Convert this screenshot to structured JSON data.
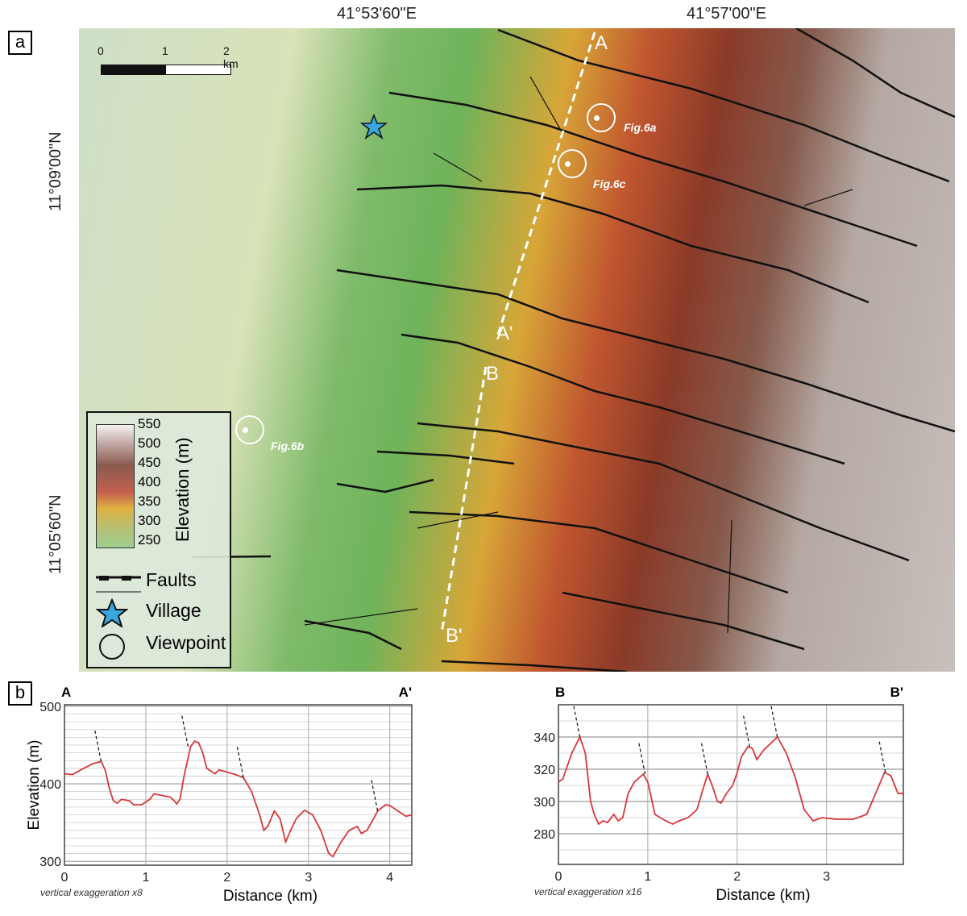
{
  "panel_a": {
    "label": "a",
    "top_coords": [
      "41°53'60\"E",
      "41°57'00\"E"
    ],
    "left_coords": [
      "11°09'00\"N",
      "11°05'60\"N"
    ],
    "scale_bar": {
      "labels": [
        "0",
        "1",
        "2 km"
      ]
    },
    "profile_labels": {
      "a": "A",
      "a_end": "A'",
      "b": "B",
      "b_end": "B'"
    },
    "viewpoints": [
      "Fig.6a",
      "Fig.6c",
      "Fig.6b"
    ],
    "legend": {
      "elevation_title": "Elevation (m)",
      "elevation_ticks": [
        "550",
        "500",
        "450",
        "400",
        "350",
        "300",
        "250"
      ],
      "faults": "Faults",
      "village": "Village",
      "viewpoint": "Viewpoint"
    },
    "colors": {
      "village": "#3aa6e0",
      "fault": "#111111"
    }
  },
  "panel_b": {
    "label": "b"
  },
  "chart_data": [
    {
      "type": "line",
      "start_label": "A",
      "end_label": "A'",
      "xlabel": "Distance (km)",
      "ylabel": "Elevation (m)",
      "note": "vertical exaggeration x8",
      "xlim": [
        0,
        4.27
      ],
      "ylim": [
        295,
        502
      ],
      "xticks": [
        "0",
        "1",
        "2",
        "3",
        "4"
      ],
      "yticks": [
        "300",
        "400",
        "500"
      ],
      "grid": true,
      "line_color": "#d8383a",
      "x": [
        0,
        0.1,
        0.2,
        0.35,
        0.45,
        0.5,
        0.55,
        0.6,
        0.65,
        0.7,
        0.8,
        0.85,
        0.95,
        1.05,
        1.1,
        1.2,
        1.3,
        1.35,
        1.38,
        1.42,
        1.47,
        1.55,
        1.6,
        1.65,
        1.7,
        1.75,
        1.85,
        1.9,
        2.0,
        2.1,
        2.2,
        2.3,
        2.4,
        2.45,
        2.5,
        2.58,
        2.65,
        2.72,
        2.78,
        2.85,
        2.95,
        3.05,
        3.15,
        3.25,
        3.3,
        3.4,
        3.5,
        3.6,
        3.65,
        3.72,
        3.8,
        3.85,
        3.95,
        4.0,
        4.1,
        4.2,
        4.27
      ],
      "y": [
        413,
        412,
        418,
        426,
        429,
        418,
        395,
        378,
        375,
        380,
        378,
        373,
        373,
        380,
        387,
        385,
        383,
        378,
        374,
        380,
        410,
        448,
        455,
        453,
        440,
        420,
        413,
        418,
        415,
        412,
        408,
        390,
        360,
        340,
        345,
        365,
        355,
        325,
        340,
        355,
        366,
        360,
        340,
        310,
        306,
        325,
        340,
        345,
        336,
        340,
        355,
        365,
        373,
        372,
        365,
        358,
        360
      ],
      "fault_positions_km": [
        0.45,
        1.52,
        2.2,
        3.85
      ]
    },
    {
      "type": "line",
      "start_label": "B",
      "end_label": "B'",
      "xlabel": "Distance (km)",
      "ylabel": "",
      "note": "vertical exaggeration x16",
      "xlim": [
        0,
        3.86
      ],
      "ylim": [
        261,
        360
      ],
      "xticks": [
        "0",
        "1",
        "2",
        "3"
      ],
      "yticks": [
        "280",
        "300",
        "320",
        "340"
      ],
      "grid": true,
      "line_color": "#d8383a",
      "x": [
        0,
        0.05,
        0.15,
        0.24,
        0.3,
        0.36,
        0.4,
        0.45,
        0.5,
        0.55,
        0.62,
        0.67,
        0.72,
        0.78,
        0.85,
        0.95,
        1.0,
        1.08,
        1.2,
        1.28,
        1.35,
        1.45,
        1.55,
        1.62,
        1.67,
        1.72,
        1.78,
        1.82,
        1.88,
        1.95,
        2.0,
        2.05,
        2.12,
        2.17,
        2.22,
        2.3,
        2.45,
        2.55,
        2.65,
        2.75,
        2.85,
        2.95,
        3.1,
        3.3,
        3.45,
        3.55,
        3.65,
        3.72,
        3.8,
        3.86
      ],
      "y": [
        312,
        314,
        330,
        340,
        330,
        300,
        292,
        286,
        288,
        287,
        292,
        288,
        290,
        305,
        312,
        317,
        312,
        292,
        288,
        286,
        288,
        290,
        295,
        308,
        317,
        310,
        300,
        299,
        305,
        310,
        318,
        328,
        334,
        333,
        326,
        332,
        340,
        330,
        315,
        295,
        288,
        290,
        289,
        289,
        292,
        305,
        318,
        316,
        305,
        305
      ],
      "fault_positions_km": [
        0.24,
        0.97,
        1.67,
        2.14,
        2.45,
        3.66
      ]
    }
  ]
}
